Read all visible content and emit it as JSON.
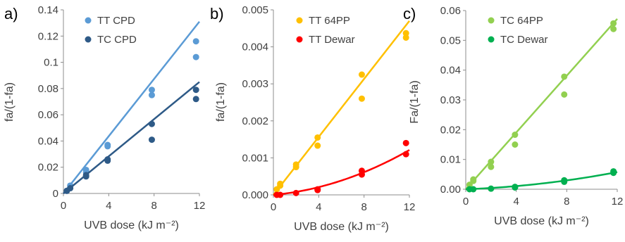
{
  "chart_data": [
    {
      "type": "scatter",
      "panel_label": "a)",
      "xlabel": "UVB dose (kJ m⁻²)",
      "ylabel": "fa/(1-fa)",
      "xlim": [
        0,
        12
      ],
      "ylim": [
        0,
        0.14
      ],
      "x_ticks": [
        "0",
        "4",
        "8",
        "12"
      ],
      "y_ticks": [
        "0",
        "0.02",
        "0.04",
        "0.06",
        "0.08",
        "0.1",
        "0.12",
        "0.14"
      ],
      "legend_position": "top-left",
      "grid": false,
      "series": [
        {
          "name": "TT CPD",
          "color": "#5b9bd5",
          "points": [
            [
              0.3,
              0.002
            ],
            [
              0.6,
              0.006
            ],
            [
              2,
              0.016
            ],
            [
              2,
              0.018
            ],
            [
              3.9,
              0.036
            ],
            [
              3.9,
              0.037
            ],
            [
              7.8,
              0.075
            ],
            [
              7.8,
              0.079
            ],
            [
              11.7,
              0.104
            ],
            [
              11.7,
              0.116
            ]
          ],
          "trendline": {
            "type": "linear",
            "from": [
              0,
              0
            ],
            "to": [
              12,
              0.131
            ]
          }
        },
        {
          "name": "TC CPD",
          "color": "#2e5a87",
          "points": [
            [
              0.3,
              0.002
            ],
            [
              0.6,
              0.004
            ],
            [
              2,
              0.013
            ],
            [
              2,
              0.014
            ],
            [
              3.9,
              0.025
            ],
            [
              3.9,
              0.026
            ],
            [
              7.8,
              0.041
            ],
            [
              7.8,
              0.053
            ],
            [
              11.7,
              0.072
            ],
            [
              11.7,
              0.079
            ]
          ],
          "trendline": {
            "type": "linear",
            "from": [
              0,
              0
            ],
            "to": [
              12,
              0.085
            ]
          }
        }
      ]
    },
    {
      "type": "scatter",
      "panel_label": "b)",
      "xlabel": "UVB dose (kJ m⁻²)",
      "ylabel": "fa/(1-fa)",
      "xlim": [
        0,
        12
      ],
      "ylim": [
        0,
        0.005
      ],
      "x_ticks": [
        "0",
        "4",
        "8",
        "12"
      ],
      "y_ticks": [
        "0.000",
        "0.001",
        "0.002",
        "0.003",
        "0.004",
        "0.005"
      ],
      "legend_position": "top-left",
      "grid": false,
      "series": [
        {
          "name": "TT 64PP",
          "color": "#ffc000",
          "points": [
            [
              0.3,
              0.00015
            ],
            [
              0.6,
              0.00025
            ],
            [
              0.6,
              0.0003
            ],
            [
              2,
              0.00075
            ],
            [
              2,
              0.00082
            ],
            [
              3.9,
              0.00133
            ],
            [
              3.9,
              0.00155
            ],
            [
              7.8,
              0.0026
            ],
            [
              7.8,
              0.00325
            ],
            [
              11.7,
              0.00425
            ],
            [
              11.7,
              0.00437
            ]
          ],
          "trendline": {
            "type": "linear",
            "from": [
              0,
              0
            ],
            "to": [
              12,
              0.0047
            ]
          }
        },
        {
          "name": "TT Dewar",
          "color": "#ff0000",
          "points": [
            [
              0.3,
              0.0
            ],
            [
              0.6,
              0.0
            ],
            [
              2,
              5e-05
            ],
            [
              3.9,
              0.00013
            ],
            [
              3.9,
              0.00015
            ],
            [
              7.8,
              0.00055
            ],
            [
              7.8,
              0.00065
            ],
            [
              11.7,
              0.0011
            ],
            [
              11.7,
              0.0014
            ]
          ],
          "trendline": {
            "type": "polynomial",
            "coefficients": [
              0,
              2.78e-05,
              6.1e-06
            ]
          }
        }
      ]
    },
    {
      "type": "scatter",
      "panel_label": "c)",
      "xlabel": "UVB dose (kJ m⁻²)",
      "ylabel": "Fa/(1-fa)",
      "xlim": [
        0,
        12
      ],
      "ylim": [
        0,
        0.06
      ],
      "x_ticks": [
        "0",
        "4",
        "8",
        "12"
      ],
      "y_ticks": [
        "0.00",
        "0.01",
        "0.02",
        "0.03",
        "0.04",
        "0.05",
        "0.06"
      ],
      "legend_position": "top-left",
      "grid": false,
      "series": [
        {
          "name": "TC 64PP",
          "color": "#92d050",
          "points": [
            [
              0.3,
              0.0015
            ],
            [
              0.6,
              0.0028
            ],
            [
              0.6,
              0.0033
            ],
            [
              2,
              0.0075
            ],
            [
              2,
              0.0092
            ],
            [
              3.9,
              0.015
            ],
            [
              3.9,
              0.0183
            ],
            [
              7.8,
              0.0318
            ],
            [
              7.8,
              0.0378
            ],
            [
              11.7,
              0.0538
            ],
            [
              11.7,
              0.0557
            ]
          ],
          "trendline": {
            "type": "linear",
            "from": [
              0,
              0
            ],
            "to": [
              12,
              0.0572
            ]
          }
        },
        {
          "name": "TC Dewar",
          "color": "#00b050",
          "points": [
            [
              0.3,
              0.0
            ],
            [
              0.6,
              0.0
            ],
            [
              2,
              0.0002
            ],
            [
              3.9,
              0.0006
            ],
            [
              3.9,
              0.0008
            ],
            [
              7.8,
              0.0025
            ],
            [
              7.8,
              0.003
            ],
            [
              11.7,
              0.0055
            ],
            [
              11.7,
              0.006
            ]
          ],
          "trendline": {
            "type": "polynomial",
            "coefficients": [
              0,
              0.000157,
              2.69e-05
            ]
          }
        }
      ]
    }
  ]
}
